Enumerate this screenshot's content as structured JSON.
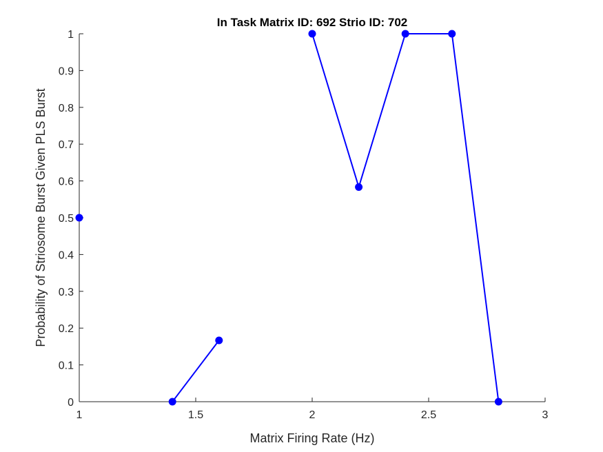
{
  "chart_data": {
    "type": "line",
    "title": "In Task Matrix ID: 692 Strio ID: 702",
    "xlabel": "Matrix Firing Rate (Hz)",
    "ylabel": "Probability of Striosome Burst Given PLS Burst",
    "xlim": [
      1,
      3
    ],
    "ylim": [
      0,
      1
    ],
    "xticks": [
      1,
      1.5,
      2,
      2.5,
      3
    ],
    "xtick_labels": [
      "1",
      "1.5",
      "2",
      "2.5",
      "3"
    ],
    "yticks": [
      0,
      0.1,
      0.2,
      0.3,
      0.4,
      0.5,
      0.6,
      0.7,
      0.8,
      0.9,
      1
    ],
    "ytick_labels": [
      "0",
      "0.1",
      "0.2",
      "0.3",
      "0.4",
      "0.5",
      "0.6",
      "0.7",
      "0.8",
      "0.9",
      "1"
    ],
    "grid": false,
    "color": "#0000ff",
    "series": [
      {
        "x": [
          1.0,
          1.2,
          1.4,
          1.6,
          1.8,
          2.0,
          2.2,
          2.4,
          2.6,
          2.8
        ],
        "y": [
          0.5,
          null,
          0.0,
          0.1667,
          null,
          1.0,
          0.5833,
          1.0,
          1.0,
          0.0
        ]
      }
    ]
  }
}
